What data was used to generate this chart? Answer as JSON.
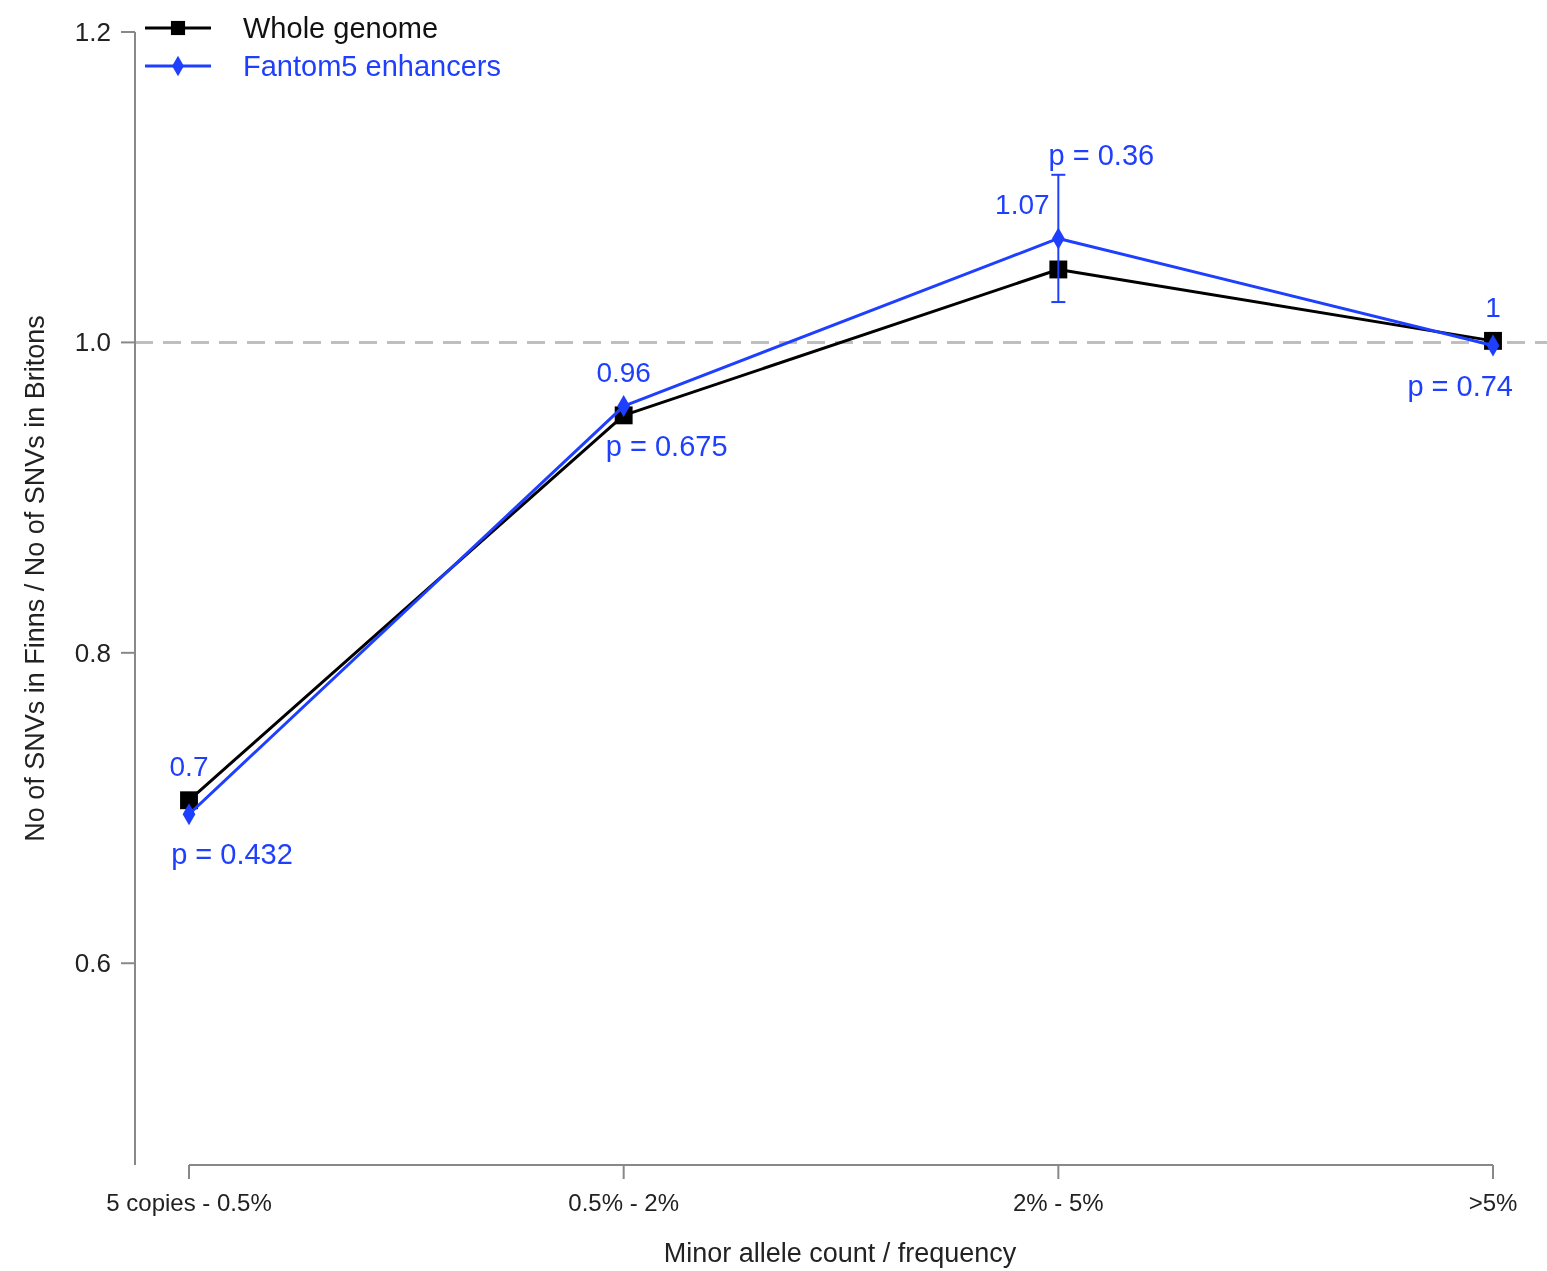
{
  "chart_data": {
    "type": "line",
    "xlabel": "Minor allele count / frequency",
    "ylabel": "No of SNVs in Finns / No of SNVs in Britons",
    "categories": [
      "5 copies - 0.5%",
      "0.5% - 2%",
      "2% - 5%",
      ">5%"
    ],
    "series": [
      {
        "name": "Whole genome",
        "color": "#000000",
        "marker": "square",
        "values": [
          0.705,
          0.953,
          1.047,
          1.001
        ]
      },
      {
        "name": "Fantom5 enhancers",
        "color": "#1f3fff",
        "marker": "diamond",
        "values": [
          0.696,
          0.959,
          1.067,
          0.998
        ],
        "errors": [
          null,
          null,
          [
            1.026,
            1.108
          ],
          null
        ],
        "value_labels": [
          "0.7",
          "0.96",
          "1.07",
          "1"
        ]
      }
    ],
    "ylim": [
      0.47,
      1.2
    ],
    "yticks": [
      0.6,
      0.8,
      {
        "value": 1,
        "label": "1.0"
      },
      1.2
    ],
    "ref_lines": [
      {
        "axis": "y",
        "value": 1,
        "color": "#bfbfbf",
        "line_style": "dashed"
      }
    ],
    "annotations": [
      {
        "text": "p = 0.432",
        "x": "5 copies - 0.5%",
        "y": 0.696
      },
      {
        "text": "p = 0.675",
        "x": "0.5% - 2%",
        "y": 0.959
      },
      {
        "text": "p = 0.36",
        "x": "2% - 5%",
        "y": 1.108
      },
      {
        "text": "p = 0.74",
        "x": ">5%",
        "y": 0.998
      }
    ],
    "legend": "top left",
    "line_style": "solid"
  }
}
